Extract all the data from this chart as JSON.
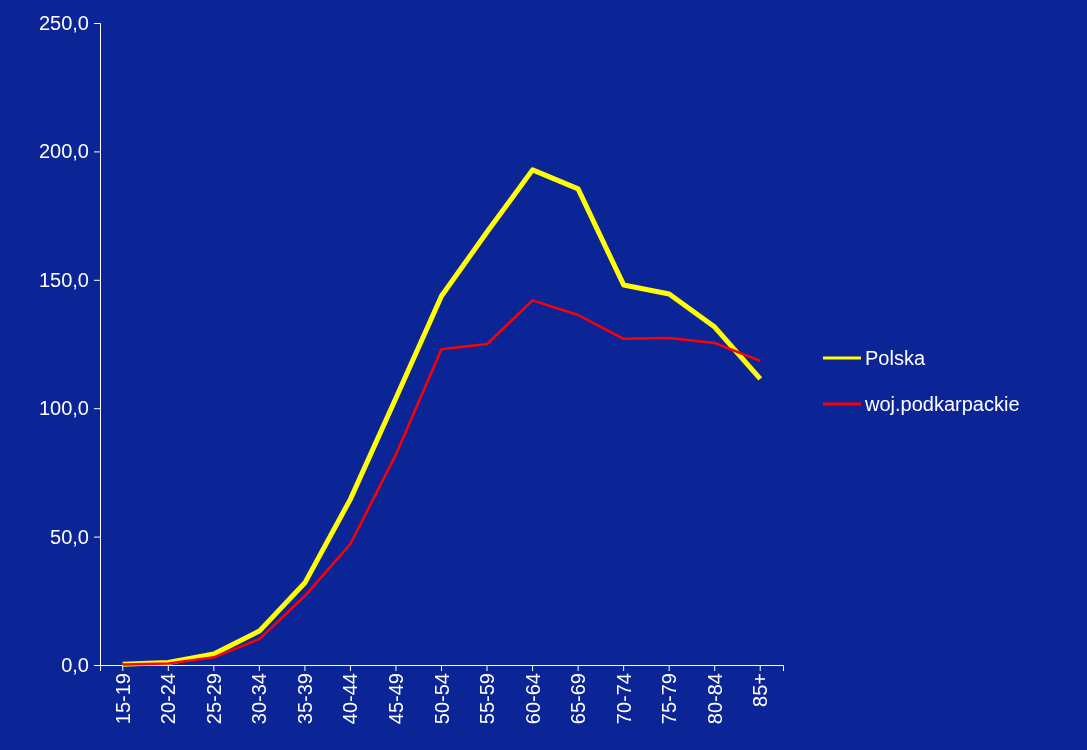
{
  "chart_data": {
    "type": "line",
    "categories": [
      "15-19",
      "20-24",
      "25-29",
      "30-34",
      "35-39",
      "40-44",
      "45-49",
      "50-54",
      "55-59",
      "60-64",
      "65-69",
      "70-74",
      "75-79",
      "80-84",
      "85+"
    ],
    "series": [
      {
        "name": "Polska",
        "color": "#ffff00",
        "values": [
          0.3,
          1.0,
          4.3,
          13.2,
          32.0,
          64.6,
          104.0,
          143.7,
          168.6,
          192.8,
          185.4,
          148.0,
          144.5,
          131.6,
          111.4
        ]
      },
      {
        "name": "woj.podkarpackie",
        "color": "#ff0000",
        "values": [
          0.2,
          0.6,
          3.0,
          10.1,
          26.9,
          47.1,
          82.0,
          123.0,
          125.0,
          142.0,
          136.3,
          127.0,
          127.3,
          125.4,
          118.4
        ]
      }
    ],
    "ylim": [
      0,
      250
    ],
    "yticks": [
      {
        "value": 0,
        "label": "0,0"
      },
      {
        "value": 50,
        "label": "50,0"
      },
      {
        "value": 100,
        "label": "100,0"
      },
      {
        "value": 150,
        "label": "150,0"
      },
      {
        "value": 200,
        "label": "200,0"
      },
      {
        "value": 250,
        "label": "250,0"
      }
    ],
    "grid": false,
    "legend": "right",
    "marker": "none",
    "line_style": "solid"
  }
}
